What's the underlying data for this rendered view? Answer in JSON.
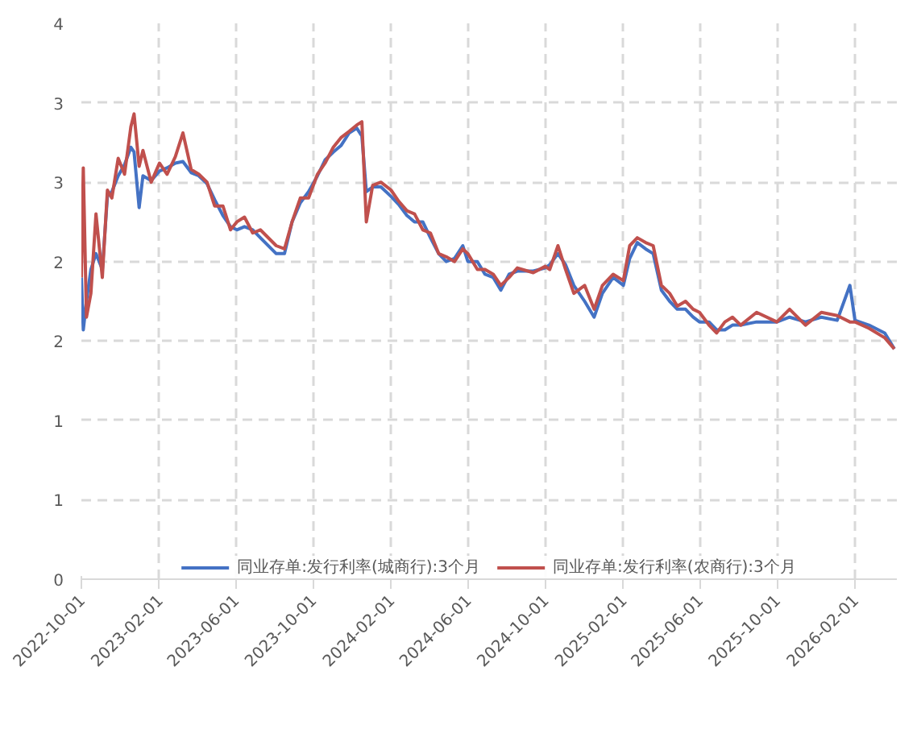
{
  "chart_data": {
    "type": "line",
    "x": [
      "2022-10-01",
      "2022-10-04",
      "2022-10-09",
      "2022-10-16",
      "2022-10-24",
      "2022-11-03",
      "2022-11-11",
      "2022-11-18",
      "2022-11-28",
      "2022-12-08",
      "2022-12-18",
      "2022-12-23",
      "2022-12-31",
      "2023-01-06",
      "2023-01-19",
      "2023-02-01",
      "2023-02-13",
      "2023-02-26",
      "2023-03-10",
      "2023-03-23",
      "2023-04-04",
      "2023-04-17",
      "2023-04-29",
      "2023-05-12",
      "2023-05-24",
      "2023-06-03",
      "2023-06-15",
      "2023-06-28",
      "2023-07-10",
      "2023-08-04",
      "2023-08-17",
      "2023-08-29",
      "2023-09-11",
      "2023-09-24",
      "2023-10-08",
      "2023-10-20",
      "2023-11-02",
      "2023-11-14",
      "2023-11-27",
      "2023-12-09",
      "2023-12-17",
      "2023-12-24",
      "2024-01-03",
      "2024-01-16",
      "2024-02-01",
      "2024-02-13",
      "2024-02-26",
      "2024-03-09",
      "2024-03-22",
      "2024-04-03",
      "2024-04-16",
      "2024-04-28",
      "2024-05-11",
      "2024-05-24",
      "2024-06-01",
      "2024-06-16",
      "2024-06-28",
      "2024-07-11",
      "2024-07-23",
      "2024-08-05",
      "2024-08-18",
      "2024-09-12",
      "2024-10-01",
      "2024-10-08",
      "2024-10-21",
      "2024-11-02",
      "2024-11-15",
      "2024-12-02",
      "2024-12-17",
      "2024-12-30",
      "2025-01-16",
      "2025-02-01",
      "2025-02-11",
      "2025-02-23",
      "2025-03-08",
      "2025-03-20",
      "2025-04-02",
      "2025-04-15",
      "2025-04-27",
      "2025-05-10",
      "2025-05-22",
      "2025-06-01",
      "2025-06-16",
      "2025-06-28",
      "2025-07-11",
      "2025-07-23",
      "2025-08-05",
      "2025-08-30",
      "2025-10-01",
      "2025-10-21",
      "2025-11-15",
      "2025-12-10",
      "2026-01-04",
      "2026-01-24",
      "2026-02-01",
      "2026-02-23",
      "2026-03-20",
      "2026-04-04"
    ],
    "series": [
      {
        "name": "同业存单:发行利率(城商行):3个月",
        "color": "#4472c4",
        "values": [
          1.9,
          1.57,
          1.75,
          1.95,
          2.05,
          1.95,
          2.41,
          2.44,
          2.54,
          2.61,
          2.72,
          2.69,
          2.34,
          2.54,
          2.51,
          2.57,
          2.59,
          2.62,
          2.63,
          2.56,
          2.54,
          2.49,
          2.39,
          2.29,
          2.22,
          2.2,
          2.22,
          2.2,
          2.15,
          2.05,
          2.05,
          2.25,
          2.37,
          2.44,
          2.54,
          2.64,
          2.69,
          2.73,
          2.81,
          2.84,
          2.79,
          2.44,
          2.47,
          2.47,
          2.41,
          2.36,
          2.29,
          2.25,
          2.25,
          2.15,
          2.05,
          2.0,
          2.02,
          2.1,
          2.0,
          2.0,
          1.92,
          1.9,
          1.82,
          1.92,
          1.94,
          1.94,
          1.96,
          1.98,
          2.05,
          1.98,
          1.85,
          1.75,
          1.65,
          1.8,
          1.9,
          1.85,
          2.02,
          2.12,
          2.08,
          2.05,
          1.82,
          1.75,
          1.7,
          1.7,
          1.65,
          1.62,
          1.62,
          1.57,
          1.57,
          1.6,
          1.6,
          1.62,
          1.62,
          1.65,
          1.62,
          1.65,
          1.63,
          1.85,
          1.63,
          1.6,
          1.55,
          1.45
        ]
      },
      {
        "name": "同业存单:发行利率(农商行):3个月",
        "color": "#c0504d",
        "values": [
          1.9,
          2.59,
          1.65,
          1.8,
          2.3,
          1.9,
          2.45,
          2.4,
          2.65,
          2.55,
          2.85,
          2.93,
          2.6,
          2.7,
          2.5,
          2.62,
          2.55,
          2.66,
          2.81,
          2.58,
          2.55,
          2.5,
          2.35,
          2.35,
          2.2,
          2.25,
          2.28,
          2.18,
          2.2,
          2.1,
          2.08,
          2.25,
          2.4,
          2.4,
          2.55,
          2.62,
          2.72,
          2.78,
          2.82,
          2.86,
          2.88,
          2.25,
          2.48,
          2.5,
          2.45,
          2.38,
          2.32,
          2.3,
          2.2,
          2.18,
          2.05,
          2.03,
          2.0,
          2.08,
          2.05,
          1.95,
          1.95,
          1.92,
          1.85,
          1.9,
          1.96,
          1.93,
          1.97,
          1.95,
          2.1,
          1.95,
          1.8,
          1.85,
          1.7,
          1.85,
          1.92,
          1.88,
          2.1,
          2.15,
          2.12,
          2.1,
          1.85,
          1.8,
          1.72,
          1.75,
          1.7,
          1.68,
          1.6,
          1.55,
          1.62,
          1.65,
          1.6,
          1.68,
          1.62,
          1.7,
          1.6,
          1.68,
          1.66,
          1.62,
          1.62,
          1.58,
          1.52,
          1.45
        ]
      }
    ],
    "xlim": [
      "2022-10-01",
      "2026-04-08"
    ],
    "xticks": [
      "2022-10-01",
      "2023-02-01",
      "2023-06-01",
      "2023-10-01",
      "2024-02-01",
      "2024-06-01",
      "2024-10-01",
      "2025-02-01",
      "2025-06-01",
      "2025-10-01",
      "2026-02-01"
    ],
    "ylim": [
      0,
      3.5
    ],
    "yticks": [
      0,
      {
        "value": 0.5,
        "label": "1"
      },
      1,
      {
        "value": 1.5,
        "label": "2"
      },
      2,
      {
        "value": 2.5,
        "label": "3"
      },
      3,
      {
        "value": 3.5,
        "label": "4"
      }
    ],
    "grid": true,
    "legend": "bottom",
    "marker": "none",
    "line_style": "solid"
  }
}
